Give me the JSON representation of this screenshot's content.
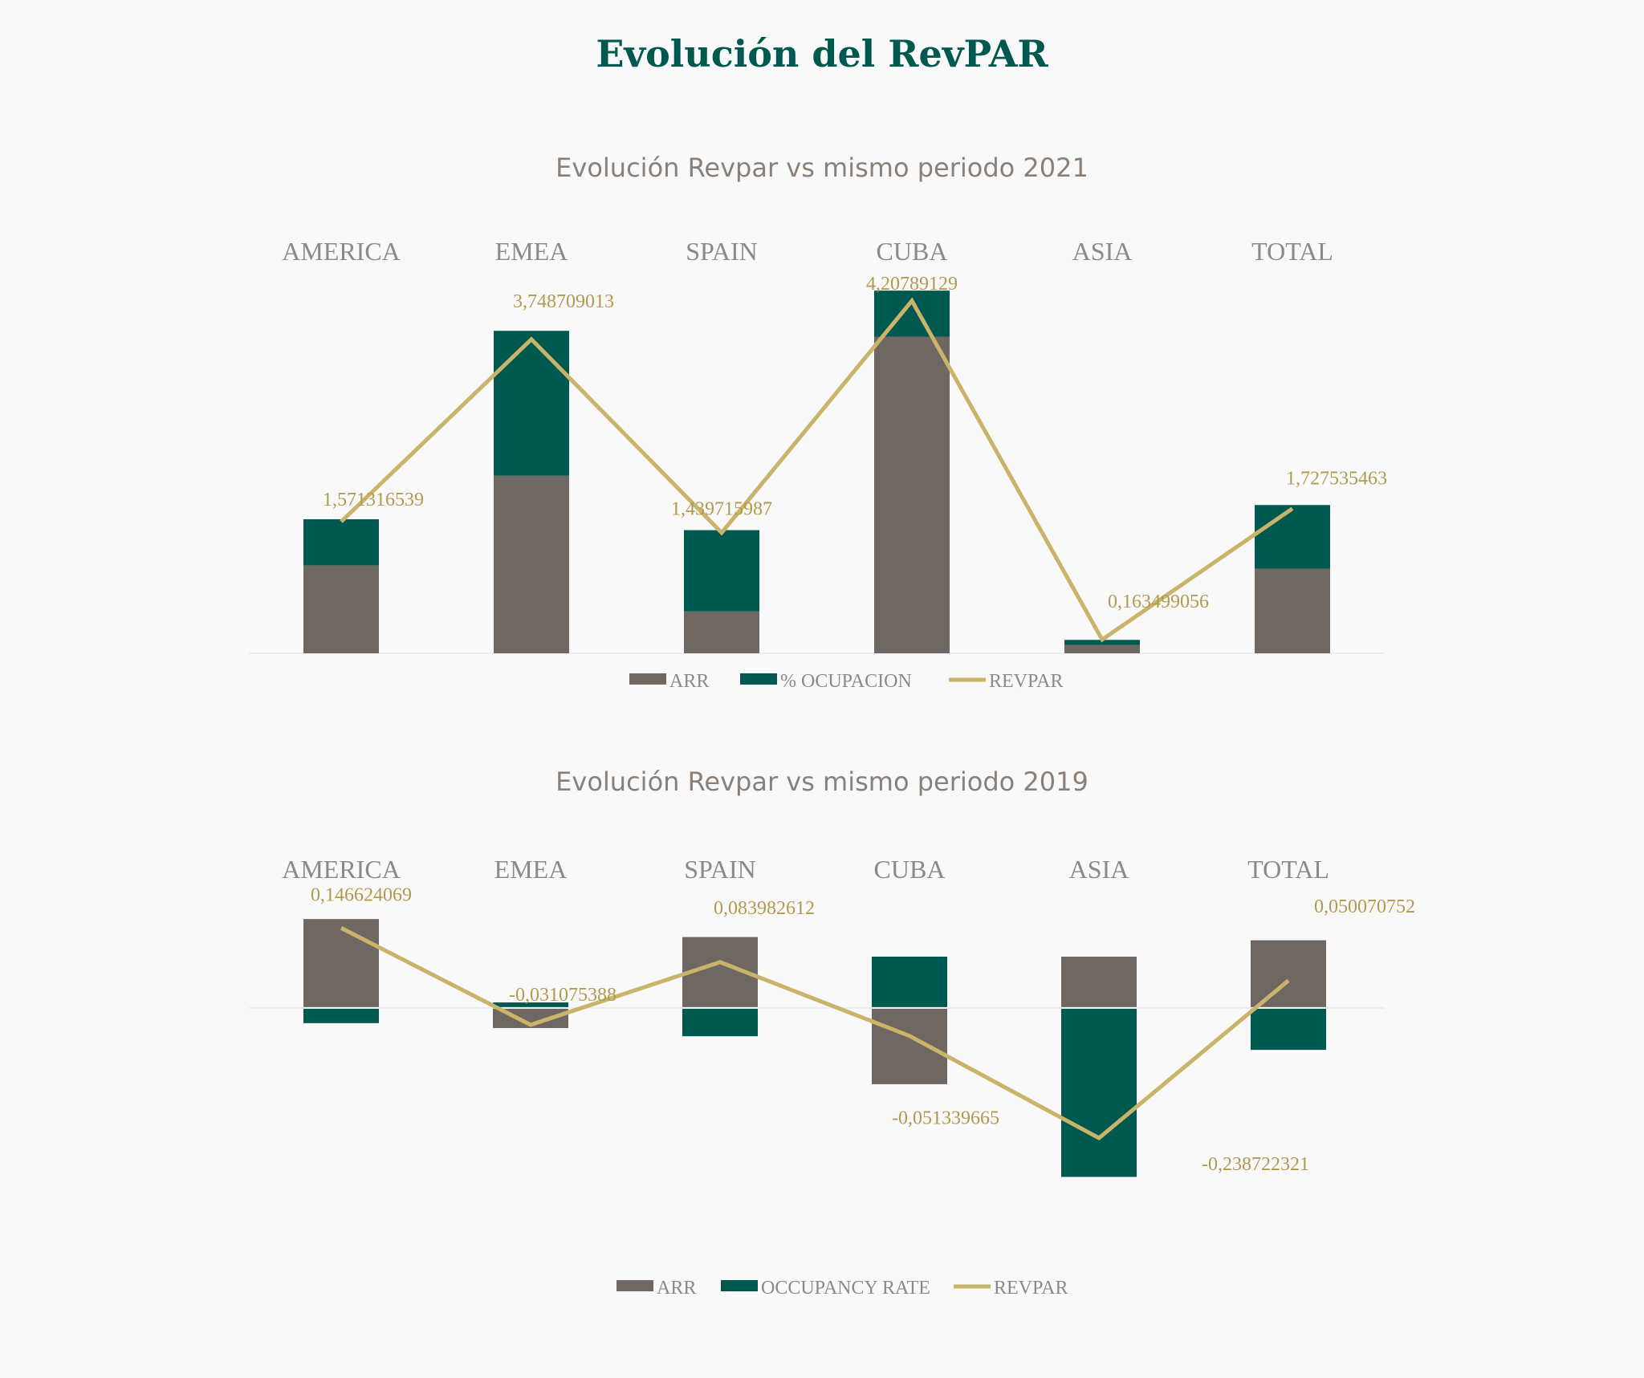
{
  "page": {
    "title": "Evolución del RevPAR"
  },
  "colors": {
    "arr": "#6e6762",
    "occupancy": "#00594f",
    "revpar": "#c9b469",
    "category_text": "#8a8a8a",
    "label_text": "#b09a4f"
  },
  "chart_data": [
    {
      "type": "bar",
      "stacked": true,
      "title": "Evolución Revpar vs mismo periodo 2021",
      "categories": [
        "AMERICA",
        "EMEA",
        "SPAIN",
        "CUBA",
        "ASIA",
        "TOTAL"
      ],
      "series": [
        {
          "name": "ARR",
          "kind": "bar",
          "values": [
            1.05,
            2.12,
            0.5,
            3.78,
            0.1,
            1.01
          ]
        },
        {
          "name": "% OCUPACION",
          "kind": "bar",
          "values": [
            0.55,
            1.73,
            0.97,
            0.55,
            0.06,
            0.76
          ]
        },
        {
          "name": "REVPAR",
          "kind": "line",
          "values": [
            1.571316539,
            3.748709013,
            1.439715987,
            4.20789129,
            0.163499056,
            1.727535463
          ]
        }
      ],
      "data_labels": [
        "1,571316539",
        "3,748709013",
        "1,439715987",
        "4,20789129",
        "0,163499056",
        "1,727535463"
      ],
      "ylim": [
        0,
        4.35
      ],
      "legend_position": "bottom"
    },
    {
      "type": "bar",
      "stacked": true,
      "title": "Evolución Revpar vs mismo periodo 2019",
      "categories": [
        "AMERICA",
        "EMEA",
        "SPAIN",
        "CUBA",
        "ASIA",
        "TOTAL"
      ],
      "series": [
        {
          "name": "ARR",
          "kind": "bar",
          "values": [
            0.163,
            -0.037,
            0.13,
            -0.14,
            0.094,
            0.124
          ]
        },
        {
          "name": "OCCUPANCY RATE",
          "kind": "bar",
          "values": [
            -0.028,
            0.01,
            -0.052,
            0.094,
            -0.31,
            -0.077
          ]
        },
        {
          "name": "REVPAR",
          "kind": "line",
          "values": [
            0.146624069,
            -0.031075388,
            0.083982612,
            -0.051339665,
            -0.238722321,
            0.050070752
          ]
        }
      ],
      "data_labels": [
        "0,146624069",
        "-0,031075388",
        "0,083982612",
        "-0,051339665",
        "-0,238722321",
        "0,050070752"
      ],
      "ylim": [
        -0.33,
        0.2
      ],
      "legend_position": "bottom"
    }
  ]
}
